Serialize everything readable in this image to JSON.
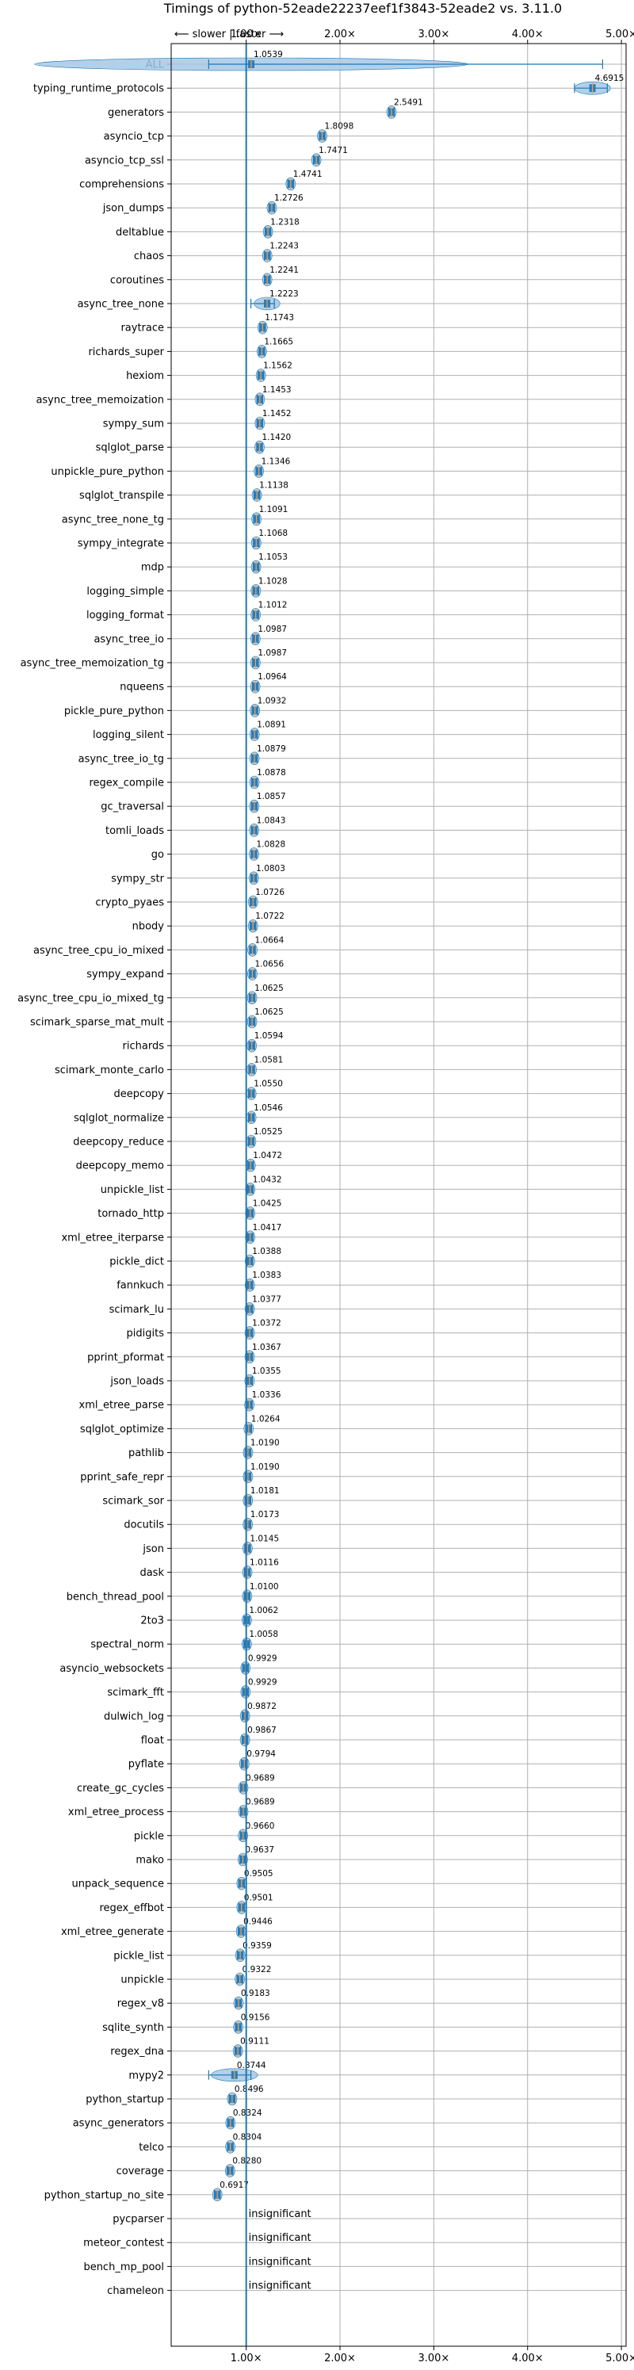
{
  "chart_data": {
    "type": "violin",
    "title": "Timings of python-52eade22237eef1f3843-52eade2 vs. 3.11.0",
    "direction_label": "⟵ slower | faster ⟶",
    "xlim": [
      0.2,
      5.05
    ],
    "xticks": [
      {
        "value": 1,
        "label": "1.00×"
      },
      {
        "value": 2,
        "label": "2.00×"
      },
      {
        "value": 3,
        "label": "3.00×"
      },
      {
        "value": 4,
        "label": "4.00×"
      },
      {
        "value": 5,
        "label": "5.00×"
      }
    ],
    "grid": true,
    "reference_line": 1,
    "colors": {
      "violin": "#a6c8e6",
      "box": "#1f77b4",
      "axis": "#000000",
      "grid": "#b0b0b0",
      "refline": "#1f77b4",
      "median": "#ff9f4a"
    },
    "benchmarks": [
      {
        "name": "ALL",
        "value": 1.0539,
        "label": "1.0539",
        "low": 0.6,
        "high": 4.8
      },
      {
        "name": "typing_runtime_protocols",
        "value": 4.6915,
        "label": "4.6915",
        "low": 4.5,
        "high": 4.85
      },
      {
        "name": "generators",
        "value": 2.5491,
        "label": "2.5491"
      },
      {
        "name": "asyncio_tcp",
        "value": 1.8098,
        "label": "1.8098"
      },
      {
        "name": "asyncio_tcp_ssl",
        "value": 1.7471,
        "label": "1.7471"
      },
      {
        "name": "comprehensions",
        "value": 1.4741,
        "label": "1.4741"
      },
      {
        "name": "json_dumps",
        "value": 1.2726,
        "label": "1.2726"
      },
      {
        "name": "deltablue",
        "value": 1.2318,
        "label": "1.2318"
      },
      {
        "name": "chaos",
        "value": 1.2243,
        "label": "1.2243"
      },
      {
        "name": "coroutines",
        "value": 1.2241,
        "label": "1.2241"
      },
      {
        "name": "async_tree_none",
        "value": 1.2223,
        "label": "1.2223",
        "low": 1.05,
        "high": 1.3
      },
      {
        "name": "raytrace",
        "value": 1.1743,
        "label": "1.1743"
      },
      {
        "name": "richards_super",
        "value": 1.1665,
        "label": "1.1665"
      },
      {
        "name": "hexiom",
        "value": 1.1562,
        "label": "1.1562"
      },
      {
        "name": "async_tree_memoization",
        "value": 1.1453,
        "label": "1.1453"
      },
      {
        "name": "sympy_sum",
        "value": 1.1452,
        "label": "1.1452"
      },
      {
        "name": "sqlglot_parse",
        "value": 1.142,
        "label": "1.1420"
      },
      {
        "name": "unpickle_pure_python",
        "value": 1.1346,
        "label": "1.1346"
      },
      {
        "name": "sqlglot_transpile",
        "value": 1.1138,
        "label": "1.1138"
      },
      {
        "name": "async_tree_none_tg",
        "value": 1.1091,
        "label": "1.1091"
      },
      {
        "name": "sympy_integrate",
        "value": 1.1068,
        "label": "1.1068"
      },
      {
        "name": "mdp",
        "value": 1.1053,
        "label": "1.1053"
      },
      {
        "name": "logging_simple",
        "value": 1.1028,
        "label": "1.1028"
      },
      {
        "name": "logging_format",
        "value": 1.1012,
        "label": "1.1012"
      },
      {
        "name": "async_tree_io",
        "value": 1.0987,
        "label": "1.0987"
      },
      {
        "name": "async_tree_memoization_tg",
        "value": 1.0987,
        "label": "1.0987"
      },
      {
        "name": "nqueens",
        "value": 1.0964,
        "label": "1.0964"
      },
      {
        "name": "pickle_pure_python",
        "value": 1.0932,
        "label": "1.0932"
      },
      {
        "name": "logging_silent",
        "value": 1.0891,
        "label": "1.0891"
      },
      {
        "name": "async_tree_io_tg",
        "value": 1.0879,
        "label": "1.0879"
      },
      {
        "name": "regex_compile",
        "value": 1.0878,
        "label": "1.0878"
      },
      {
        "name": "gc_traversal",
        "value": 1.0857,
        "label": "1.0857"
      },
      {
        "name": "tomli_loads",
        "value": 1.0843,
        "label": "1.0843"
      },
      {
        "name": "go",
        "value": 1.0828,
        "label": "1.0828"
      },
      {
        "name": "sympy_str",
        "value": 1.0803,
        "label": "1.0803"
      },
      {
        "name": "crypto_pyaes",
        "value": 1.0726,
        "label": "1.0726"
      },
      {
        "name": "nbody",
        "value": 1.0722,
        "label": "1.0722"
      },
      {
        "name": "async_tree_cpu_io_mixed",
        "value": 1.0664,
        "label": "1.0664"
      },
      {
        "name": "sympy_expand",
        "value": 1.0656,
        "label": "1.0656"
      },
      {
        "name": "async_tree_cpu_io_mixed_tg",
        "value": 1.0625,
        "label": "1.0625"
      },
      {
        "name": "scimark_sparse_mat_mult",
        "value": 1.0625,
        "label": "1.0625"
      },
      {
        "name": "richards",
        "value": 1.0594,
        "label": "1.0594"
      },
      {
        "name": "scimark_monte_carlo",
        "value": 1.0581,
        "label": "1.0581"
      },
      {
        "name": "deepcopy",
        "value": 1.055,
        "label": "1.0550"
      },
      {
        "name": "sqlglot_normalize",
        "value": 1.0546,
        "label": "1.0546"
      },
      {
        "name": "deepcopy_reduce",
        "value": 1.0525,
        "label": "1.0525"
      },
      {
        "name": "deepcopy_memo",
        "value": 1.0472,
        "label": "1.0472"
      },
      {
        "name": "unpickle_list",
        "value": 1.0432,
        "label": "1.0432"
      },
      {
        "name": "tornado_http",
        "value": 1.0425,
        "label": "1.0425"
      },
      {
        "name": "xml_etree_iterparse",
        "value": 1.0417,
        "label": "1.0417"
      },
      {
        "name": "pickle_dict",
        "value": 1.0388,
        "label": "1.0388"
      },
      {
        "name": "fannkuch",
        "value": 1.0383,
        "label": "1.0383"
      },
      {
        "name": "scimark_lu",
        "value": 1.0377,
        "label": "1.0377"
      },
      {
        "name": "pidigits",
        "value": 1.0372,
        "label": "1.0372"
      },
      {
        "name": "pprint_pformat",
        "value": 1.0367,
        "label": "1.0367"
      },
      {
        "name": "json_loads",
        "value": 1.0355,
        "label": "1.0355"
      },
      {
        "name": "xml_etree_parse",
        "value": 1.0336,
        "label": "1.0336"
      },
      {
        "name": "sqlglot_optimize",
        "value": 1.0264,
        "label": "1.0264"
      },
      {
        "name": "pathlib",
        "value": 1.019,
        "label": "1.0190"
      },
      {
        "name": "pprint_safe_repr",
        "value": 1.019,
        "label": "1.0190"
      },
      {
        "name": "scimark_sor",
        "value": 1.0181,
        "label": "1.0181"
      },
      {
        "name": "docutils",
        "value": 1.0173,
        "label": "1.0173"
      },
      {
        "name": "json",
        "value": 1.0145,
        "label": "1.0145"
      },
      {
        "name": "dask",
        "value": 1.0116,
        "label": "1.0116"
      },
      {
        "name": "bench_thread_pool",
        "value": 1.01,
        "label": "1.0100"
      },
      {
        "name": "2to3",
        "value": 1.0062,
        "label": "1.0062"
      },
      {
        "name": "spectral_norm",
        "value": 1.0058,
        "label": "1.0058"
      },
      {
        "name": "asyncio_websockets",
        "value": 0.9929,
        "label": "0.9929"
      },
      {
        "name": "scimark_fft",
        "value": 0.9929,
        "label": "0.9929"
      },
      {
        "name": "dulwich_log",
        "value": 0.9872,
        "label": "0.9872"
      },
      {
        "name": "float",
        "value": 0.9867,
        "label": "0.9867"
      },
      {
        "name": "pyflate",
        "value": 0.9794,
        "label": "0.9794"
      },
      {
        "name": "create_gc_cycles",
        "value": 0.9689,
        "label": "0.9689"
      },
      {
        "name": "xml_etree_process",
        "value": 0.9689,
        "label": "0.9689"
      },
      {
        "name": "pickle",
        "value": 0.966,
        "label": "0.9660"
      },
      {
        "name": "mako",
        "value": 0.9637,
        "label": "0.9637"
      },
      {
        "name": "unpack_sequence",
        "value": 0.9505,
        "label": "0.9505"
      },
      {
        "name": "regex_effbot",
        "value": 0.9501,
        "label": "0.9501"
      },
      {
        "name": "xml_etree_generate",
        "value": 0.9446,
        "label": "0.9446"
      },
      {
        "name": "pickle_list",
        "value": 0.9359,
        "label": "0.9359"
      },
      {
        "name": "unpickle",
        "value": 0.9322,
        "label": "0.9322"
      },
      {
        "name": "regex_v8",
        "value": 0.9183,
        "label": "0.9183"
      },
      {
        "name": "sqlite_synth",
        "value": 0.9156,
        "label": "0.9156"
      },
      {
        "name": "regex_dna",
        "value": 0.9111,
        "label": "0.9111"
      },
      {
        "name": "mypy2",
        "value": 0.8744,
        "label": "0.8744",
        "low": 0.6,
        "high": 1.05
      },
      {
        "name": "python_startup",
        "value": 0.8496,
        "label": "0.8496"
      },
      {
        "name": "async_generators",
        "value": 0.8324,
        "label": "0.8324"
      },
      {
        "name": "telco",
        "value": 0.8304,
        "label": "0.8304"
      },
      {
        "name": "coverage",
        "value": 0.828,
        "label": "0.8280"
      },
      {
        "name": "python_startup_no_site",
        "value": 0.6917,
        "label": "0.6917"
      },
      {
        "name": "pycparser",
        "value": null,
        "label": "insignificant"
      },
      {
        "name": "meteor_contest",
        "value": null,
        "label": "insignificant"
      },
      {
        "name": "bench_mp_pool",
        "value": null,
        "label": "insignificant"
      },
      {
        "name": "chameleon",
        "value": null,
        "label": "insignificant"
      }
    ]
  }
}
